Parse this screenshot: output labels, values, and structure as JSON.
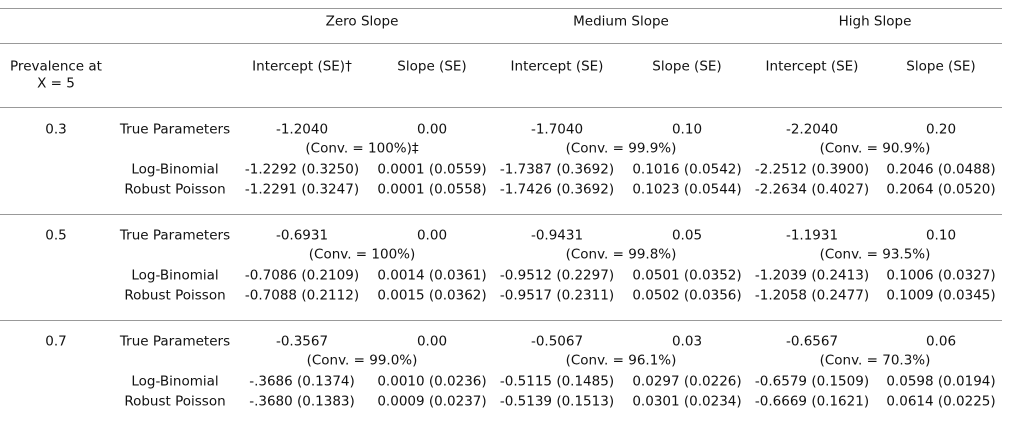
{
  "header": {
    "groups": [
      "Zero Slope",
      "Medium Slope",
      "High Slope"
    ],
    "prevalence_label": [
      "Prevalence at",
      "X = 5"
    ],
    "columns": [
      "Intercept (SE)†",
      "Slope (SE)",
      "Intercept (SE)",
      "Slope (SE)",
      "Intercept (SE)",
      "Slope (SE)"
    ]
  },
  "table": {
    "blocks": [
      {
        "prevalence": "0.3",
        "true_label": "True Parameters",
        "true_values": [
          "-1.2040",
          "0.00",
          "-1.7040",
          "0.10",
          "-2.2040",
          "0.20"
        ],
        "convergence": [
          "(Conv. = 100%)‡",
          "(Conv. = 99.9%)",
          "(Conv. = 90.9%)"
        ],
        "rows": [
          {
            "label": "Log-Binomial",
            "cells": [
              "-1.2292 (0.3250)",
              "0.0001 (0.0559)",
              "-1.7387 (0.3692)",
              "0.1016 (0.0542)",
              "-2.2512 (0.3900)",
              "0.2046 (0.0488)"
            ]
          },
          {
            "label": "Robust Poisson",
            "cells": [
              "-1.2291 (0.3247)",
              "0.0001 (0.0558)",
              "-1.7426 (0.3692)",
              "0.1023 (0.0544)",
              "-2.2634 (0.4027)",
              "0.2064 (0.0520)"
            ]
          }
        ]
      },
      {
        "prevalence": "0.5",
        "true_label": "True Parameters",
        "true_values": [
          "-0.6931",
          "0.00",
          "-0.9431",
          "0.05",
          "-1.1931",
          "0.10"
        ],
        "convergence": [
          "(Conv. = 100%)",
          "(Conv. = 99.8%)",
          "(Conv. = 93.5%)"
        ],
        "rows": [
          {
            "label": "Log-Binomial",
            "cells": [
              "-0.7086 (0.2109)",
              "0.0014 (0.0361)",
              "-0.9512 (0.2297)",
              "0.0501 (0.0352)",
              "-1.2039 (0.2413)",
              "0.1006 (0.0327)"
            ]
          },
          {
            "label": "Robust Poisson",
            "cells": [
              "-0.7088 (0.2112)",
              "0.0015 (0.0362)",
              "-0.9517 (0.2311)",
              "0.0502 (0.0356)",
              "-1.2058 (0.2477)",
              "0.1009 (0.0345)"
            ]
          }
        ]
      },
      {
        "prevalence": "0.7",
        "true_label": "True Parameters",
        "true_values": [
          "-0.3567",
          "0.00",
          "-0.5067",
          "0.03",
          "-0.6567",
          "0.06"
        ],
        "convergence": [
          "(Conv. = 99.0%)",
          "(Conv. = 96.1%)",
          "(Conv. = 70.3%)"
        ],
        "rows": [
          {
            "label": "Log-Binomial",
            "cells": [
              "-.3686 (0.1374)",
              "0.0010 (0.0236)",
              "-0.5115 (0.1485)",
              "0.0297 (0.0226)",
              "-0.6579 (0.1509)",
              "0.0598 (0.0194)"
            ]
          },
          {
            "label": "Robust Poisson",
            "cells": [
              "-.3680 (0.1383)",
              "0.0009 (0.0237)",
              "-0.5139 (0.1513)",
              "0.0301 (0.0234)",
              "-0.6669 (0.1621)",
              "0.0614 (0.0225)"
            ]
          }
        ]
      }
    ]
  }
}
